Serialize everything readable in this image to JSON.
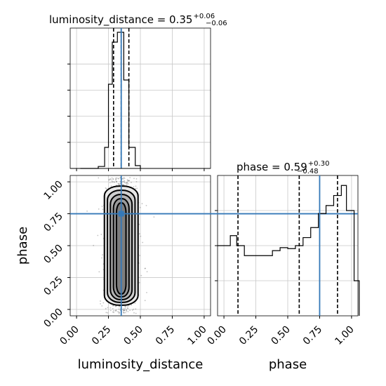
{
  "chart_data": {
    "type": "corner",
    "parameters": [
      "luminosity_distance",
      "phase"
    ],
    "injection": {
      "luminosity_distance": 0.35,
      "phase": 0.75
    },
    "colors": {
      "truth": "#3579b8",
      "hist": "#000000",
      "grid": "#c8c8c8",
      "points": "#555555"
    },
    "grid": true,
    "titles": {
      "luminosity_distance": {
        "text": "luminosity_distance = 0.35",
        "plus": "+0.06",
        "minus": "−0.06"
      },
      "phase": {
        "text": "phase = 0.59",
        "plus": "+0.30",
        "minus": "−0.48"
      }
    },
    "xlabels": {
      "luminosity_distance": "luminosity_distance",
      "phase": "phase"
    },
    "ylabels": {
      "phase": "phase"
    },
    "ticks": [
      0.0,
      0.25,
      0.5,
      0.75,
      1.0
    ],
    "tick_labels": [
      "0.00",
      "0.25",
      "0.50",
      "0.75",
      "1.00"
    ],
    "axis_range": [
      -0.05,
      1.05
    ],
    "histograms": {
      "luminosity_distance": {
        "bin_edges": [
          0.0,
          0.02,
          0.04,
          0.06,
          0.08,
          0.1,
          0.12,
          0.14,
          0.16,
          0.18,
          0.2,
          0.22,
          0.24,
          0.26,
          0.28,
          0.3,
          0.32,
          0.34,
          0.36,
          0.38,
          0.4,
          0.42,
          0.44,
          0.46,
          0.48,
          0.5,
          0.52,
          0.54,
          0.56,
          0.58,
          0.6
        ],
        "counts": [
          0,
          0,
          0,
          0,
          0,
          0,
          0,
          0,
          0,
          0,
          0,
          0,
          0,
          0,
          0,
          0,
          0,
          0,
          0,
          0,
          0,
          0,
          0,
          0,
          0,
          0,
          0,
          0,
          0,
          0
        ],
        "steps": [
          [
            0.03,
            0
          ],
          [
            0.17,
            0.014
          ],
          [
            0.22,
            0.15
          ],
          [
            0.25,
            0.6
          ],
          [
            0.28,
            0.9
          ],
          [
            0.32,
            0.97
          ],
          [
            0.35,
            0.97
          ],
          [
            0.37,
            0.63
          ],
          [
            0.41,
            0.15
          ],
          [
            0.46,
            0.02
          ],
          [
            0.5,
            0
          ]
        ],
        "quantiles": [
          0.29,
          0.35,
          0.41
        ],
        "ylim": [
          0,
          1.0
        ]
      },
      "phase": {
        "steps": [
          [
            -0.05,
            0.7
          ],
          [
            0.0,
            0.7
          ],
          [
            0.05,
            0.8
          ],
          [
            0.1,
            0.7
          ],
          [
            0.16,
            0.6
          ],
          [
            0.24,
            0.6
          ],
          [
            0.32,
            0.6
          ],
          [
            0.38,
            0.65
          ],
          [
            0.44,
            0.68
          ],
          [
            0.5,
            0.67
          ],
          [
            0.56,
            0.7
          ],
          [
            0.62,
            0.78
          ],
          [
            0.68,
            0.88
          ],
          [
            0.74,
            1.02
          ],
          [
            0.8,
            1.1
          ],
          [
            0.86,
            1.2
          ],
          [
            0.92,
            1.3
          ],
          [
            0.96,
            1.05
          ],
          [
            1.02,
            0.35
          ],
          [
            1.06,
            0
          ]
        ],
        "quantiles": [
          0.11,
          0.59,
          0.89
        ],
        "ylim": [
          0,
          1.4
        ]
      }
    },
    "scatter_2d": {
      "x": "luminosity_distance",
      "y": "phase",
      "center_x": 0.35,
      "spread_x": 0.05,
      "contour_levels": 5,
      "y_range": [
        0.0,
        1.0
      ]
    }
  }
}
